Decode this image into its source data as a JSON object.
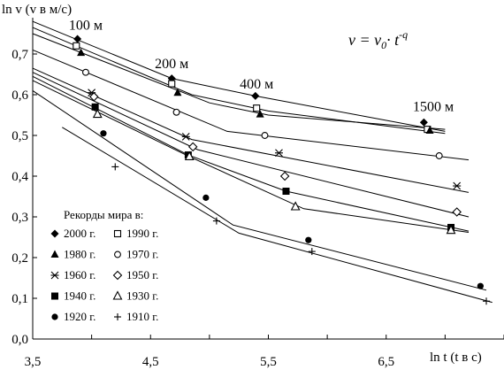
{
  "chart_data": {
    "type": "line",
    "ylabel": "ln v (v в м/с)",
    "xlabel": "ln t (t в с)",
    "formula": "v = v₀· t⁻ᑫ",
    "xlim": [
      3.5,
      7.5
    ],
    "ylim": [
      0.0,
      0.8
    ],
    "x_ticks": [
      "3,5",
      "4,5",
      "5,5",
      "6,5"
    ],
    "x_tick_values": [
      3.5,
      4.5,
      5.5,
      6.5
    ],
    "y_ticks": [
      "0,0",
      "0,1",
      "0,2",
      "0,3",
      "0,4",
      "0,5",
      "0,6",
      "0,7"
    ],
    "y_tick_values": [
      0.0,
      0.1,
      0.2,
      0.3,
      0.4,
      0.5,
      0.6,
      0.7
    ],
    "grid": false,
    "distance_labels": [
      {
        "text": "100 м",
        "x": 3.95,
        "y": 0.76
      },
      {
        "text": "200 м",
        "x": 4.68,
        "y": 0.665
      },
      {
        "text": "400 м",
        "x": 5.4,
        "y": 0.615
      },
      {
        "text": "1500 м",
        "x": 6.9,
        "y": 0.56
      }
    ],
    "legend_title": "Рекорды мира в:",
    "legend_position": "bottom-left",
    "series": [
      {
        "name": "2000 г.",
        "marker": "diamond-filled",
        "marks": [
          [
            3.88,
            0.737
          ],
          [
            4.68,
            0.64
          ],
          [
            5.39,
            0.597
          ],
          [
            6.82,
            0.532
          ]
        ],
        "line": [
          [
            3.5,
            0.78
          ],
          [
            4.68,
            0.64
          ],
          [
            5.39,
            0.597
          ],
          [
            7.0,
            0.51
          ]
        ]
      },
      {
        "name": "1990 г.",
        "marker": "square-open",
        "marks": [
          [
            3.87,
            0.72
          ],
          [
            4.68,
            0.627
          ],
          [
            5.4,
            0.567
          ],
          [
            6.85,
            0.515
          ]
        ],
        "line": [
          [
            3.5,
            0.765
          ],
          [
            4.85,
            0.6
          ],
          [
            5.5,
            0.56
          ],
          [
            7.0,
            0.505
          ]
        ]
      },
      {
        "name": "1980 г.",
        "marker": "triangle-filled",
        "marks": [
          [
            3.91,
            0.703
          ],
          [
            4.73,
            0.605
          ],
          [
            5.43,
            0.552
          ],
          [
            6.87,
            0.512
          ]
        ],
        "line": [
          [
            3.5,
            0.75
          ],
          [
            5.0,
            0.58
          ],
          [
            5.5,
            0.55
          ],
          [
            7.0,
            0.515
          ]
        ]
      },
      {
        "name": "1970 г.",
        "marker": "circle-open",
        "marks": [
          [
            3.95,
            0.655
          ],
          [
            4.72,
            0.557
          ],
          [
            5.47,
            0.5
          ],
          [
            6.95,
            0.45
          ]
        ],
        "line": [
          [
            3.5,
            0.71
          ],
          [
            5.15,
            0.51
          ],
          [
            7.2,
            0.44
          ]
        ]
      },
      {
        "name": "1960 г.",
        "marker": "asterisk",
        "marks": [
          [
            4.0,
            0.605
          ],
          [
            4.8,
            0.497
          ],
          [
            5.59,
            0.457
          ],
          [
            7.1,
            0.376
          ]
        ],
        "line": [
          [
            3.5,
            0.665
          ],
          [
            4.85,
            0.49
          ],
          [
            7.2,
            0.36
          ]
        ]
      },
      {
        "name": "1950 г.",
        "marker": "diamond-open",
        "marks": [
          [
            4.02,
            0.595
          ],
          [
            4.86,
            0.472
          ],
          [
            5.64,
            0.4
          ],
          [
            7.1,
            0.312
          ]
        ],
        "line": [
          [
            3.5,
            0.655
          ],
          [
            4.9,
            0.465
          ],
          [
            7.2,
            0.3
          ]
        ]
      },
      {
        "name": "1940 г.",
        "marker": "square-filled",
        "marks": [
          [
            4.03,
            0.57
          ],
          [
            4.82,
            0.452
          ],
          [
            5.65,
            0.363
          ],
          [
            7.05,
            0.274
          ]
        ],
        "line": [
          [
            3.5,
            0.645
          ],
          [
            4.82,
            0.452
          ],
          [
            5.65,
            0.363
          ],
          [
            7.2,
            0.265
          ]
        ]
      },
      {
        "name": "1930 г.",
        "marker": "triangle-open",
        "marks": [
          [
            4.05,
            0.552
          ],
          [
            4.83,
            0.448
          ],
          [
            5.73,
            0.325
          ],
          [
            7.05,
            0.267
          ]
        ],
        "line": [
          [
            3.5,
            0.635
          ],
          [
            4.83,
            0.448
          ],
          [
            5.8,
            0.32
          ],
          [
            7.2,
            0.262
          ]
        ]
      },
      {
        "name": "1920 г.",
        "marker": "circle-filled",
        "marks": [
          [
            4.1,
            0.505
          ],
          [
            4.97,
            0.347
          ],
          [
            5.84,
            0.243
          ],
          [
            7.3,
            0.13
          ]
        ],
        "line": [
          [
            3.5,
            0.61
          ],
          [
            5.2,
            0.28
          ],
          [
            7.35,
            0.12
          ]
        ]
      },
      {
        "name": "1910 г.",
        "marker": "plus",
        "marks": [
          [
            4.2,
            0.423
          ],
          [
            5.06,
            0.29
          ],
          [
            5.87,
            0.215
          ],
          [
            7.35,
            0.093
          ]
        ],
        "line": [
          [
            3.75,
            0.52
          ],
          [
            5.25,
            0.26
          ],
          [
            7.4,
            0.09
          ]
        ]
      }
    ]
  }
}
